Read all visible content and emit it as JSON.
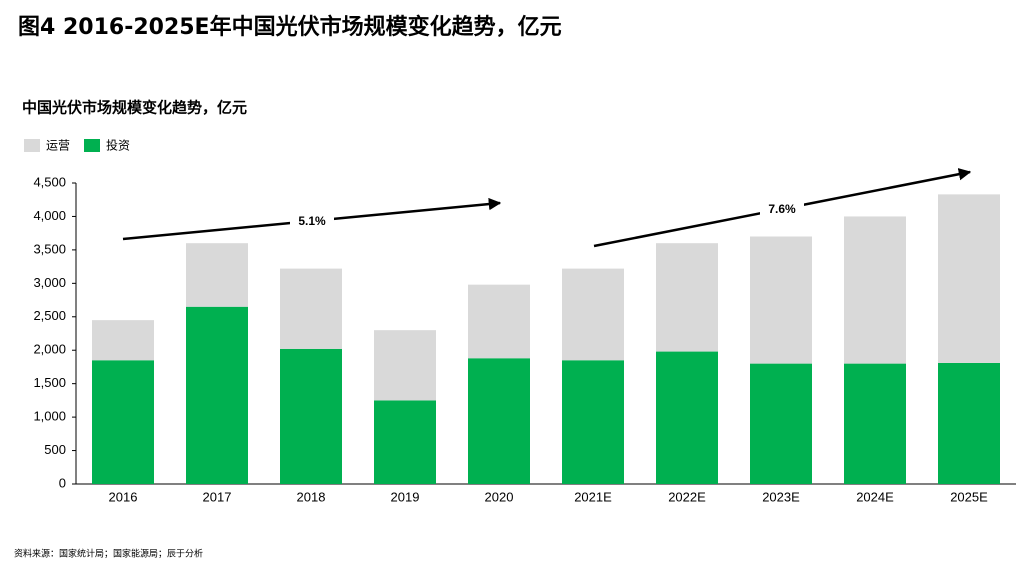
{
  "chart_data": {
    "type": "stacked_bar",
    "title": "图4 2016-2025E年中国光伏市场规模变化趋势，亿元",
    "subtitle": "中国光伏市场规模变化趋势，亿元",
    "source": "资料来源：国家统计局；国家能源局；辰于分析",
    "categories": [
      "2016",
      "2017",
      "2018",
      "2019",
      "2020",
      "2021E",
      "2022E",
      "2023E",
      "2024E",
      "2025E"
    ],
    "series": [
      {
        "name": "运营",
        "color": "#d9d9d9",
        "values": [
          600,
          950,
          1200,
          1050,
          1100,
          1370,
          1620,
          1900,
          2200,
          2520
        ]
      },
      {
        "name": "投资",
        "color": "#00b050",
        "values": [
          1850,
          2650,
          2020,
          1250,
          1880,
          1850,
          1980,
          1800,
          1800,
          1810
        ]
      }
    ],
    "ylim": [
      0,
      4500
    ],
    "yticks": [
      0,
      500,
      {
        "value": 1000,
        "label": "1,000"
      },
      {
        "value": 1500,
        "label": "1,500"
      },
      {
        "value": 2000,
        "label": "2,000"
      },
      {
        "value": 2500,
        "label": "2,500"
      },
      {
        "value": 3000,
        "label": "3,000"
      },
      {
        "value": 3500,
        "label": "3,500"
      },
      {
        "value": 4000,
        "label": "4,000"
      },
      {
        "value": 4500,
        "label": "4,500"
      }
    ],
    "annotations": [
      "5.1%",
      "7.6%"
    ],
    "legend": "top-left"
  }
}
